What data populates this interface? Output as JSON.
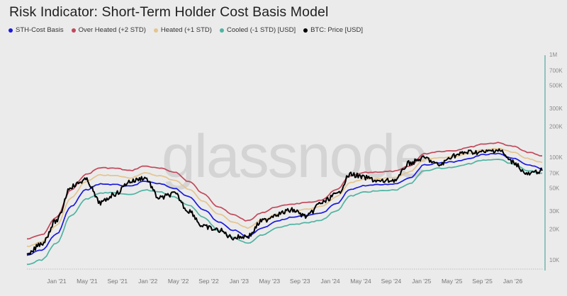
{
  "header": {
    "title": "Risk Indicator: Short-Term Holder Cost Basis Model"
  },
  "legend": [
    {
      "label": "STH-Cost Basis",
      "color": "#1a1adb"
    },
    {
      "label": "Over Heated (+2 STD)",
      "color": "#c2485a"
    },
    {
      "label": "Heated (+1 STD)",
      "color": "#e5c48e"
    },
    {
      "label": "Cooled (-1 STD) [USD]",
      "color": "#4fb3a2"
    },
    {
      "label": "BTC: Price [USD]",
      "color": "#000000"
    }
  ],
  "watermark": "glassnode",
  "chart_data": {
    "type": "line",
    "title": "Risk Indicator: Short-Term Holder Cost Basis Model",
    "xlabel": "",
    "ylabel": "",
    "yscale": "log",
    "ylim": [
      8000,
      1000000
    ],
    "grid": false,
    "legend_position": "top",
    "x_ticks": [
      "Jan '21",
      "May '21",
      "Sep '21",
      "Jan '22",
      "May '22",
      "Sep '22",
      "Jan '23",
      "May '23",
      "Sep '23",
      "Jan '24",
      "May '24",
      "Sep '24",
      "Jan '25",
      "May '25",
      "Sep '25",
      "Jan '26"
    ],
    "y_ticks": [
      "10K",
      "20K",
      "30K",
      "50K",
      "70K",
      "100K",
      "200K",
      "300K",
      "500K",
      "700K",
      "1M"
    ],
    "x": [
      "Oct '20",
      "Dec '20",
      "Jan '21",
      "Mar '21",
      "Apr '21",
      "Jun '21",
      "Aug '21",
      "Oct '21",
      "Nov '21",
      "Jan '22",
      "Mar '22",
      "May '22",
      "Jul '22",
      "Sep '22",
      "Nov '22",
      "Jan '23",
      "Mar '23",
      "May '23",
      "Jul '23",
      "Sep '23",
      "Nov '23",
      "Jan '24",
      "Mar '24",
      "May '24",
      "Jul '24",
      "Sep '24",
      "Nov '24",
      "Jan '25",
      "Mar '25",
      "May '25",
      "Jul '25",
      "Sep '25",
      "Oct '25",
      "Dec '25",
      "Feb '26",
      "Mar '26"
    ],
    "series": [
      {
        "name": "Over Heated (+2 STD)",
        "color": "#c2485a",
        "values": [
          16000,
          17500,
          26000,
          48000,
          68000,
          79000,
          78000,
          74000,
          82000,
          78000,
          72000,
          58000,
          44000,
          33000,
          27500,
          24000,
          29000,
          33000,
          35000,
          36000,
          38000,
          48000,
          66000,
          71000,
          72000,
          73000,
          82000,
          108000,
          114000,
          116000,
          125000,
          135000,
          138000,
          128000,
          112000,
          103000
        ]
      },
      {
        "name": "Heated (+1 STD)",
        "color": "#e5c48e",
        "values": [
          13500,
          15000,
          21500,
          40000,
          58000,
          67000,
          66000,
          63000,
          70000,
          66000,
          60000,
          49000,
          37000,
          28000,
          23500,
          20500,
          24500,
          28000,
          30000,
          31000,
          33000,
          41000,
          57000,
          61000,
          62000,
          63000,
          72000,
          94000,
          99000,
          101000,
          109000,
          118000,
          121000,
          112000,
          97000,
          89000
        ]
      },
      {
        "name": "STH-Cost Basis",
        "color": "#1a1adb",
        "values": [
          11200,
          12500,
          17800,
          33000,
          48000,
          55000,
          54000,
          52000,
          58000,
          55000,
          50000,
          41000,
          31000,
          23500,
          19500,
          17000,
          20500,
          24000,
          26000,
          27000,
          28500,
          35000,
          49000,
          53000,
          54000,
          55000,
          63000,
          84000,
          88000,
          90000,
          97000,
          106000,
          108000,
          98000,
          84000,
          78000
        ]
      },
      {
        "name": "Cooled (-1 STD) [USD]",
        "color": "#4fb3a2",
        "values": [
          9000,
          10000,
          14500,
          27000,
          39000,
          45000,
          45000,
          43000,
          48000,
          46000,
          41000,
          34000,
          26000,
          19500,
          16500,
          14500,
          17500,
          20500,
          22000,
          23000,
          24500,
          30000,
          42000,
          46000,
          47000,
          48000,
          55000,
          74000,
          78000,
          80000,
          86000,
          94000,
          96000,
          86000,
          74000,
          70000
        ]
      },
      {
        "name": "BTC: Price [USD]",
        "color": "#000000",
        "values": [
          11000,
          14500,
          24000,
          52000,
          60000,
          36000,
          44000,
          58000,
          63000,
          40000,
          44000,
          30000,
          21000,
          19500,
          16500,
          17000,
          24000,
          28000,
          30500,
          26500,
          36000,
          43000,
          68000,
          63000,
          58000,
          60000,
          88000,
          98000,
          84000,
          104000,
          112000,
          112000,
          118000,
          90000,
          68000,
          74000
        ]
      }
    ]
  }
}
